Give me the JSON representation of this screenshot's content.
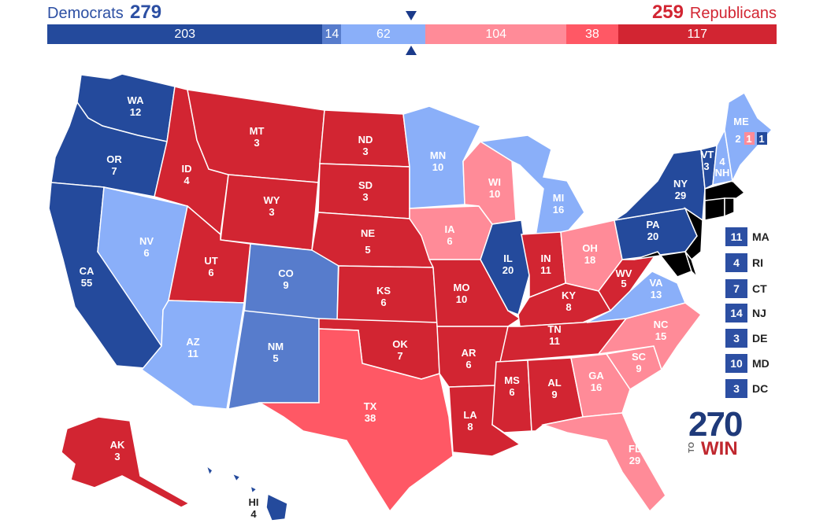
{
  "header": {
    "dem_label": "Democrats",
    "dem_total": "279",
    "rep_total": "259",
    "rep_label": "Republicans"
  },
  "colors": {
    "safe_dem": "#244a9c",
    "likely_dem": "#577ccc",
    "lean_dem": "#8aaff9",
    "lean_rep": "#ff8b98",
    "likely_rep": "#ff5865",
    "safe_rep": "#d22532"
  },
  "bar": [
    {
      "value": 203,
      "label": "203",
      "category": "safe_dem"
    },
    {
      "value": 14,
      "label": "14",
      "category": "likely_dem"
    },
    {
      "value": 62,
      "label": "62",
      "category": "lean_dem"
    },
    {
      "value": 104,
      "label": "104",
      "category": "lean_rep"
    },
    {
      "value": 38,
      "label": "38",
      "category": "likely_rep"
    },
    {
      "value": 117,
      "label": "117",
      "category": "safe_rep"
    }
  ],
  "states": {
    "WA": {
      "label": "WA",
      "ev": "12",
      "category": "safe_dem"
    },
    "OR": {
      "label": "OR",
      "ev": "7",
      "category": "safe_dem"
    },
    "CA": {
      "label": "CA",
      "ev": "55",
      "category": "safe_dem"
    },
    "NV": {
      "label": "NV",
      "ev": "6",
      "category": "lean_dem"
    },
    "ID": {
      "label": "ID",
      "ev": "4",
      "category": "safe_rep"
    },
    "MT": {
      "label": "MT",
      "ev": "3",
      "category": "safe_rep"
    },
    "WY": {
      "label": "WY",
      "ev": "3",
      "category": "safe_rep"
    },
    "UT": {
      "label": "UT",
      "ev": "6",
      "category": "safe_rep"
    },
    "AZ": {
      "label": "AZ",
      "ev": "11",
      "category": "lean_dem"
    },
    "CO": {
      "label": "CO",
      "ev": "9",
      "category": "likely_dem"
    },
    "NM": {
      "label": "NM",
      "ev": "5",
      "category": "likely_dem"
    },
    "ND": {
      "label": "ND",
      "ev": "3",
      "category": "safe_rep"
    },
    "SD": {
      "label": "SD",
      "ev": "3",
      "category": "safe_rep"
    },
    "NE": {
      "label": "NE",
      "ev": "5",
      "category": "safe_rep"
    },
    "KS": {
      "label": "KS",
      "ev": "6",
      "category": "safe_rep"
    },
    "OK": {
      "label": "OK",
      "ev": "7",
      "category": "safe_rep"
    },
    "TX": {
      "label": "TX",
      "ev": "38",
      "category": "likely_rep"
    },
    "MN": {
      "label": "MN",
      "ev": "10",
      "category": "lean_dem"
    },
    "IA": {
      "label": "IA",
      "ev": "6",
      "category": "lean_rep"
    },
    "MO": {
      "label": "MO",
      "ev": "10",
      "category": "safe_rep"
    },
    "AR": {
      "label": "AR",
      "ev": "6",
      "category": "safe_rep"
    },
    "LA": {
      "label": "LA",
      "ev": "8",
      "category": "safe_rep"
    },
    "WI": {
      "label": "WI",
      "ev": "10",
      "category": "lean_rep"
    },
    "IL": {
      "label": "IL",
      "ev": "20",
      "category": "safe_dem"
    },
    "MI": {
      "label": "MI",
      "ev": "16",
      "category": "lean_dem"
    },
    "IN": {
      "label": "IN",
      "ev": "11",
      "category": "safe_rep"
    },
    "OH": {
      "label": "OH",
      "ev": "18",
      "category": "lean_rep"
    },
    "KY": {
      "label": "KY",
      "ev": "8",
      "category": "safe_rep"
    },
    "TN": {
      "label": "TN",
      "ev": "11",
      "category": "safe_rep"
    },
    "MS": {
      "label": "MS",
      "ev": "6",
      "category": "safe_rep"
    },
    "AL": {
      "label": "AL",
      "ev": "9",
      "category": "safe_rep"
    },
    "GA": {
      "label": "GA",
      "ev": "16",
      "category": "lean_rep"
    },
    "FL": {
      "label": "FL",
      "ev": "29",
      "category": "lean_rep"
    },
    "SC": {
      "label": "SC",
      "ev": "9",
      "category": "lean_rep"
    },
    "NC": {
      "label": "NC",
      "ev": "15",
      "category": "lean_rep"
    },
    "VA": {
      "label": "VA",
      "ev": "13",
      "category": "lean_dem"
    },
    "WV": {
      "label": "WV",
      "ev": "5",
      "category": "safe_rep"
    },
    "PA": {
      "label": "PA",
      "ev": "20",
      "category": "safe_dem"
    },
    "NY": {
      "label": "NY",
      "ev": "29",
      "category": "safe_dem"
    },
    "VT": {
      "label": "VT",
      "ev": "3",
      "category": "safe_dem"
    },
    "NH": {
      "label": "NH",
      "ev": "4",
      "category": "lean_dem"
    },
    "ME": {
      "label": "ME",
      "ev": "2",
      "category": "lean_dem"
    },
    "ME1": {
      "label": "",
      "ev": "1",
      "category": "lean_rep"
    },
    "ME2": {
      "label": "",
      "ev": "1",
      "category": "safe_dem"
    },
    "AK": {
      "label": "AK",
      "ev": "3",
      "category": "safe_rep"
    },
    "HI": {
      "label": "HI",
      "ev": "4",
      "category": "safe_dem"
    }
  },
  "small_states": [
    {
      "ev": "11",
      "label": "MA"
    },
    {
      "ev": "4",
      "label": "RI"
    },
    {
      "ev": "7",
      "label": "CT"
    },
    {
      "ev": "14",
      "label": "NJ"
    },
    {
      "ev": "3",
      "label": "DE"
    },
    {
      "ev": "10",
      "label": "MD"
    },
    {
      "ev": "3",
      "label": "DC"
    }
  ],
  "logo": {
    "number": "270",
    "to": "TO",
    "win": "WIN"
  }
}
